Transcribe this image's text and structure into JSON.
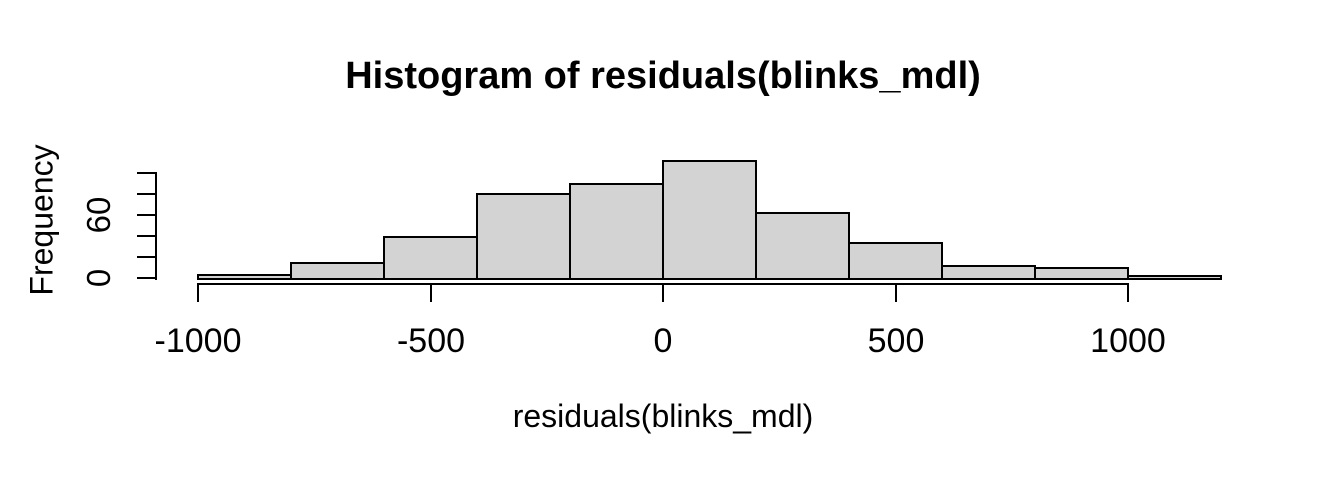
{
  "figure": {
    "background": "#ffffff"
  },
  "chart_data": {
    "type": "bar",
    "subtype": "histogram",
    "title": "Histogram of residuals(blinks_mdl)",
    "xlabel": "residuals(blinks_mdl)",
    "ylabel": "Frequency",
    "bin_start": -1000,
    "bin_width": 200,
    "bin_edges": [
      -1000,
      -800,
      -600,
      -400,
      -200,
      0,
      200,
      400,
      600,
      800,
      1000,
      1200
    ],
    "counts": [
      3,
      14,
      39,
      80,
      90,
      111,
      62,
      33,
      11,
      10,
      2
    ],
    "x_ticks": [
      {
        "value": -1000,
        "label": "-1000"
      },
      {
        "value": -500,
        "label": "-500"
      },
      {
        "value": 0,
        "label": "0"
      },
      {
        "value": 500,
        "label": "500"
      },
      {
        "value": 1000,
        "label": "1000"
      }
    ],
    "y_ticks": [
      {
        "value": 0,
        "label": "0"
      },
      {
        "value": 20,
        "label": ""
      },
      {
        "value": 40,
        "label": ""
      },
      {
        "value": 60,
        "label": "60"
      },
      {
        "value": 80,
        "label": ""
      },
      {
        "value": 100,
        "label": ""
      }
    ],
    "xlim": [
      -1000,
      1200
    ],
    "ylim": [
      0,
      111
    ],
    "grid": false,
    "legend_position": "none",
    "bar_fill": "#d3d3d3",
    "bar_border": "#000000",
    "axis_color": "#000000",
    "text_color": "#000000"
  }
}
